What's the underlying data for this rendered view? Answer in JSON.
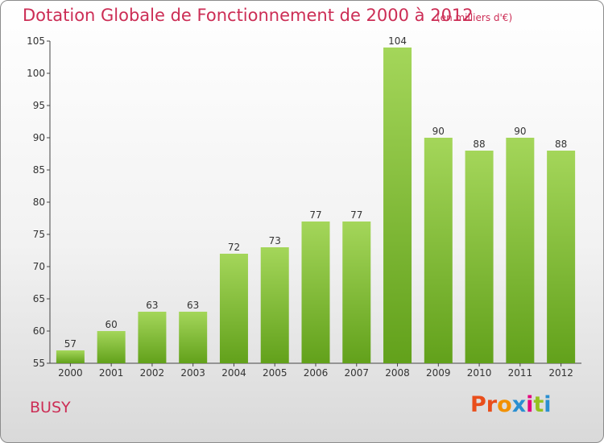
{
  "header": {
    "title": "Dotation Globale de Fonctionnement de 2000 à 2012",
    "subtitle": "(en milliers d'€)"
  },
  "footer": {
    "commune": "BUSY",
    "logo_text": "Proxiti"
  },
  "colors": {
    "title": "#cc2d55",
    "bar_light": "#a4d65a",
    "bar_dark": "#62a11b",
    "logo": [
      "#e94e1b",
      "#e94e1b",
      "#f29100",
      "#2a8fd1",
      "#e5007e",
      "#95c11f",
      "#2a8fd1"
    ]
  },
  "chart_data": {
    "type": "bar",
    "categories": [
      "2000",
      "2001",
      "2002",
      "2003",
      "2004",
      "2005",
      "2006",
      "2007",
      "2008",
      "2009",
      "2010",
      "2011",
      "2012"
    ],
    "values": [
      57,
      60,
      63,
      63,
      72,
      73,
      77,
      77,
      104,
      90,
      88,
      90,
      88
    ],
    "ylim": [
      55,
      105
    ],
    "yticks": [
      55,
      60,
      65,
      70,
      75,
      80,
      85,
      90,
      95,
      100,
      105
    ],
    "grid": false
  }
}
